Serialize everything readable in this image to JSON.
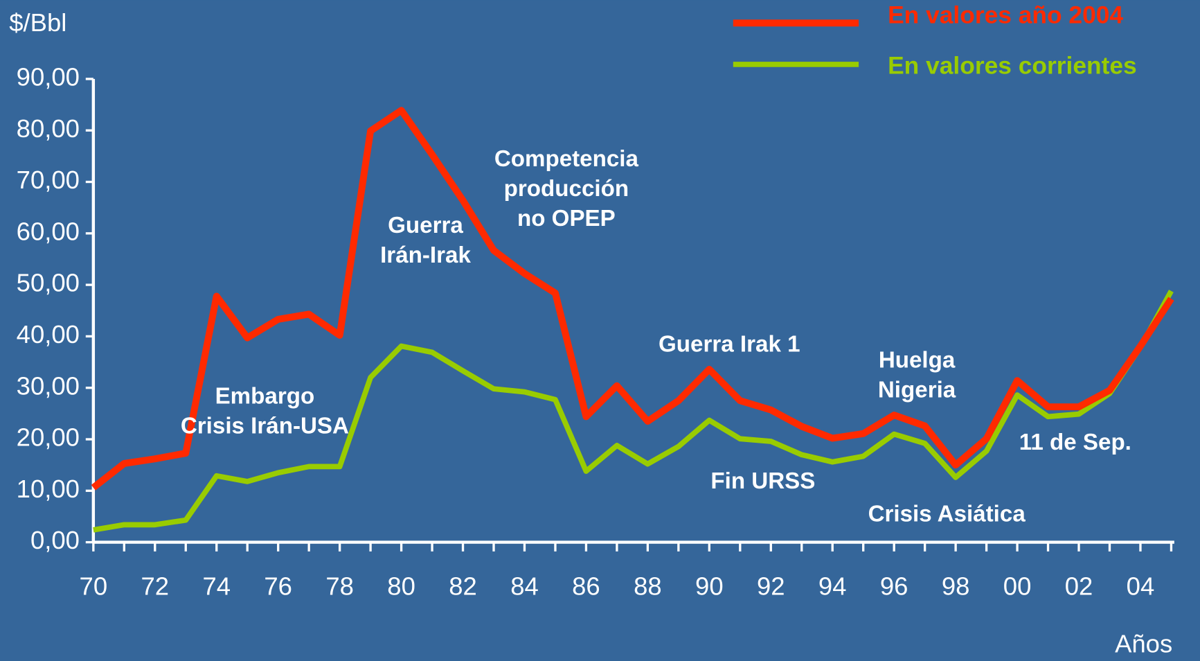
{
  "chart_data": {
    "type": "line",
    "y_label": "$/Bbl",
    "x_label": "Años",
    "categories": [
      "70",
      null,
      "72",
      null,
      "74",
      null,
      "76",
      null,
      "78",
      null,
      "80",
      null,
      "82",
      null,
      "84",
      null,
      "86",
      null,
      "88",
      null,
      "90",
      null,
      "92",
      null,
      "94",
      null,
      "96",
      null,
      "98",
      null,
      "00",
      null,
      "02",
      null,
      "04",
      null
    ],
    "series": [
      {
        "name": "En valores año 2004",
        "color": "#ff2a00",
        "values": [
          10.6,
          15.3,
          16.2,
          17.3,
          47.8,
          39.7,
          43.3,
          44.3,
          40.2,
          79.9,
          83.9,
          75.3,
          66.4,
          56.7,
          52.2,
          48.4,
          24.4,
          30.4,
          23.5,
          27.5,
          33.6,
          27.5,
          25.7,
          22.5,
          20.2,
          21.1,
          24.7,
          22.6,
          15.0,
          20.1,
          31.4,
          26.3,
          26.3,
          29.5,
          38.1,
          47.3
        ]
      },
      {
        "name": "En valores corrientes",
        "color": "#99cc00",
        "values": [
          2.4,
          3.4,
          3.4,
          4.3,
          12.9,
          11.8,
          13.5,
          14.7,
          14.7,
          32.0,
          38.1,
          36.9,
          33.3,
          29.8,
          29.2,
          27.7,
          13.8,
          18.8,
          15.2,
          18.6,
          23.7,
          20.1,
          19.6,
          17.0,
          15.6,
          16.7,
          21.0,
          19.2,
          12.6,
          17.7,
          28.6,
          24.4,
          24.9,
          28.9,
          37.9,
          48.8
        ]
      }
    ],
    "ylim": [
      0,
      90
    ],
    "yticks": [
      {
        "value": 0,
        "label": "0,00"
      },
      {
        "value": 10,
        "label": "10,00"
      },
      {
        "value": 20,
        "label": "20,00"
      },
      {
        "value": 30,
        "label": "30,00"
      },
      {
        "value": 40,
        "label": "40,00"
      },
      {
        "value": 50,
        "label": "50,00"
      },
      {
        "value": 60,
        "label": "60,00"
      },
      {
        "value": 70,
        "label": "70,00"
      },
      {
        "value": 80,
        "label": "80,00"
      },
      {
        "value": 90,
        "label": "90,00"
      }
    ],
    "legend": "top-right",
    "annotations": [
      [
        "Embargo",
        "Crisis Irán-USA"
      ],
      [
        "Guerra",
        "Irán-Irak"
      ],
      [
        "Competencia",
        "producción",
        "no OPEP"
      ],
      [
        "Guerra Irak 1"
      ],
      [
        "Huelga",
        "Nigeria"
      ],
      [
        "Fin URSS"
      ],
      [
        "Crisis Asiática"
      ],
      [
        "11 de Sep."
      ]
    ]
  }
}
